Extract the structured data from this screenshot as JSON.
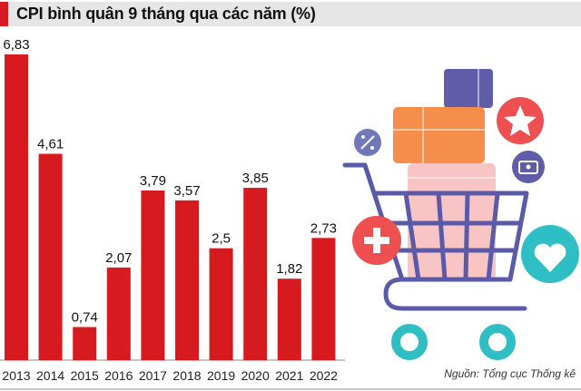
{
  "chart_data": {
    "type": "bar",
    "title": "CPI bình quân 9 tháng qua các năm (%)",
    "categories": [
      "2013",
      "2014",
      "2015",
      "2016",
      "2017",
      "2018",
      "2019",
      "2020",
      "2021",
      "2022"
    ],
    "values": [
      6.83,
      4.61,
      0.74,
      2.07,
      3.79,
      3.57,
      2.5,
      3.85,
      1.82,
      2.73
    ],
    "value_labels": [
      "6,83",
      "4,61",
      "0,74",
      "2,07",
      "3,79",
      "3,57",
      "2,5",
      "3,85",
      "1,82",
      "2,73"
    ],
    "xlabel": "",
    "ylabel": "",
    "ylim": [
      0,
      6.83
    ],
    "grid": false,
    "bar_color": "#d71920",
    "source": "Nguồn: Tổng cục Thống kê"
  },
  "colors": {
    "accent": "#d71920",
    "title_bg": "#e6e6e6"
  },
  "illustration": "shopping-cart-icon"
}
